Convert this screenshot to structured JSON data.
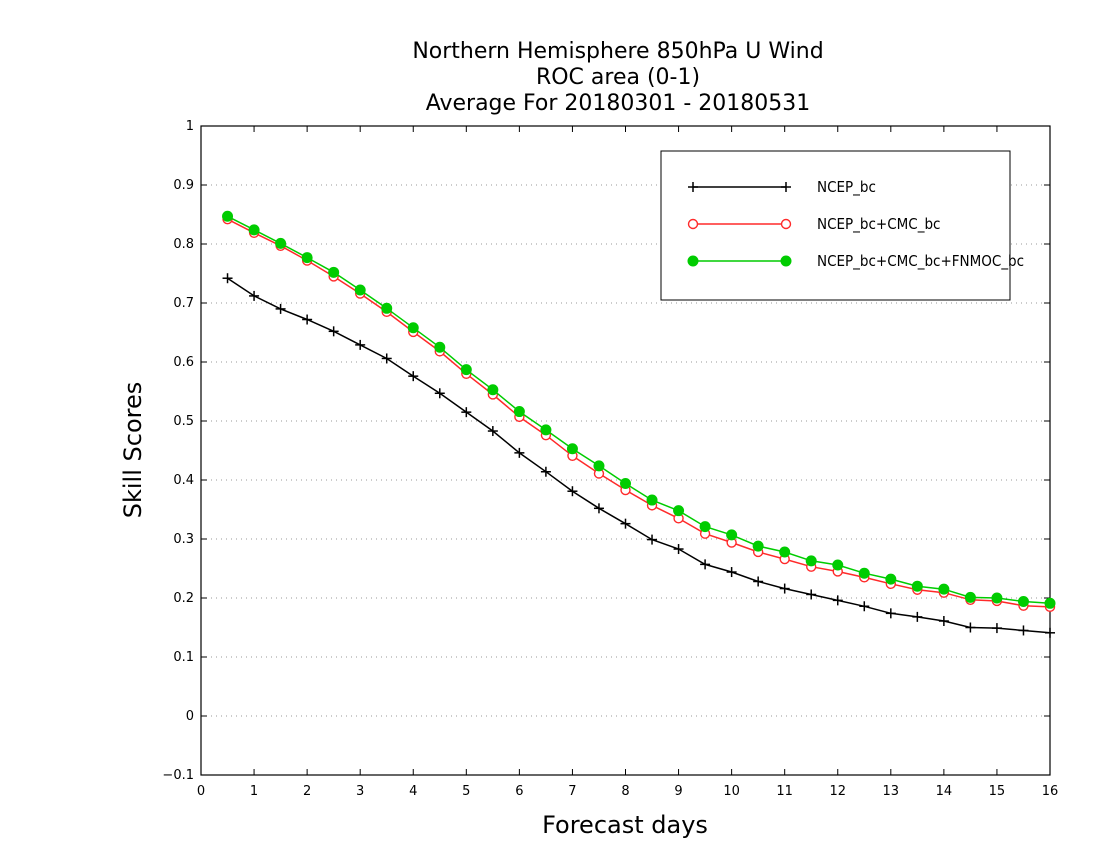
{
  "chart_data": {
    "type": "line",
    "title_lines": [
      "Northern Hemisphere 850hPa U Wind",
      "ROC area (0-1)",
      "Average For 20180301 - 20180531"
    ],
    "xlabel": "Forecast days",
    "ylabel": "Skill Scores",
    "xlim": [
      0,
      16
    ],
    "ylim": [
      -0.1,
      1
    ],
    "x_ticks": [
      "0",
      "1",
      "2",
      "3",
      "4",
      "5",
      "6",
      "7",
      "8",
      "9",
      "10",
      "11",
      "12",
      "13",
      "14",
      "15",
      "16"
    ],
    "y_ticks": [
      "−0.1",
      "0",
      "0.1",
      "0.2",
      "0.3",
      "0.4",
      "0.5",
      "0.6",
      "0.7",
      "0.8",
      "0.9",
      "1"
    ],
    "grid": "horizontal dotted",
    "legend_position": "top-right",
    "x": [
      0.5,
      1,
      1.5,
      2,
      2.5,
      3,
      3.5,
      4,
      4.5,
      5,
      5.5,
      6,
      6.5,
      7,
      7.5,
      8,
      8.5,
      9,
      9.5,
      10,
      10.5,
      11,
      11.5,
      12,
      12.5,
      13,
      13.5,
      14,
      14.5,
      15,
      15.5,
      16
    ],
    "series": [
      {
        "name": "NCEP_bc",
        "color": "#000000",
        "marker": "plus",
        "values": [
          0.742,
          0.712,
          0.69,
          0.672,
          0.652,
          0.629,
          0.606,
          0.576,
          0.547,
          0.515,
          0.483,
          0.446,
          0.414,
          0.381,
          0.352,
          0.326,
          0.299,
          0.283,
          0.257,
          0.244,
          0.228,
          0.216,
          0.206,
          0.196,
          0.186,
          0.174,
          0.168,
          0.161,
          0.15,
          0.149,
          0.145,
          0.141
        ]
      },
      {
        "name": "NCEP_bc+CMC_bc",
        "color": "#ff2a2a",
        "marker": "open-circle",
        "values": [
          0.842,
          0.819,
          0.797,
          0.772,
          0.745,
          0.716,
          0.685,
          0.651,
          0.618,
          0.58,
          0.545,
          0.507,
          0.476,
          0.441,
          0.411,
          0.383,
          0.357,
          0.335,
          0.309,
          0.294,
          0.278,
          0.266,
          0.253,
          0.245,
          0.235,
          0.224,
          0.214,
          0.209,
          0.197,
          0.195,
          0.187,
          0.185
        ]
      },
      {
        "name": "NCEP_bc+CMC_bc+FNMOC_bc",
        "color": "#00cc00",
        "marker": "filled-circle",
        "values": [
          0.847,
          0.824,
          0.801,
          0.777,
          0.752,
          0.722,
          0.691,
          0.658,
          0.625,
          0.587,
          0.553,
          0.516,
          0.485,
          0.453,
          0.424,
          0.394,
          0.366,
          0.348,
          0.321,
          0.307,
          0.288,
          0.278,
          0.263,
          0.256,
          0.242,
          0.232,
          0.22,
          0.215,
          0.201,
          0.2,
          0.194,
          0.191
        ]
      }
    ]
  }
}
